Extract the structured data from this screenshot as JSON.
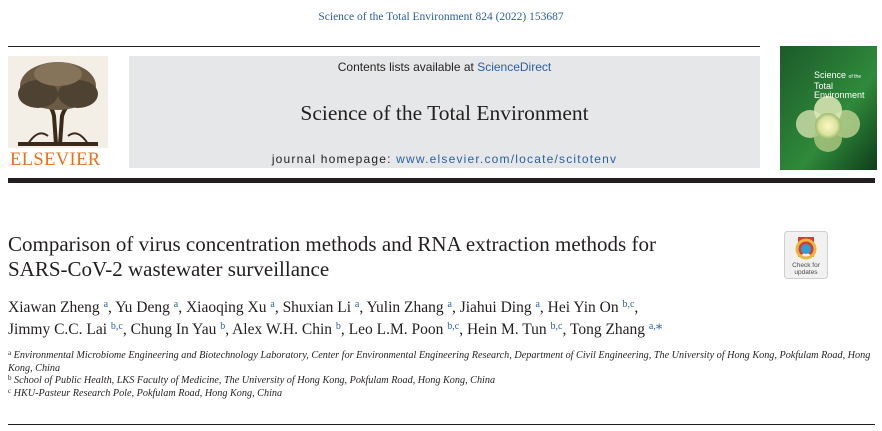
{
  "citation": "Science of the Total Environment 824 (2022) 153687",
  "header": {
    "contents_prefix": "Contents lists available at",
    "contents_link": "ScienceDirect",
    "journal_title": "Science of the Total Environment",
    "homepage_prefix": "journal homepage:",
    "homepage_url": "www.elsevier.com/locate/scitotenv"
  },
  "publisher": {
    "name": "ELSEVIER"
  },
  "cover": {
    "line1": "Science",
    "line2": "of the",
    "line3": "Total Environment"
  },
  "check_updates": {
    "line1": "Check for",
    "line2": "updates"
  },
  "article": {
    "title_line1": "Comparison of virus concentration methods and RNA extraction methods for",
    "title_line2": "SARS-CoV-2 wastewater surveillance"
  },
  "authors": [
    {
      "name": "Xiawan Zheng",
      "aff": "a"
    },
    {
      "name": "Yu Deng",
      "aff": "a"
    },
    {
      "name": "Xiaoqing Xu",
      "aff": "a"
    },
    {
      "name": "Shuxian Li",
      "aff": "a"
    },
    {
      "name": "Yulin Zhang",
      "aff": "a"
    },
    {
      "name": "Jiahui Ding",
      "aff": "a"
    },
    {
      "name": "Hei Yin On",
      "aff": "b,c"
    },
    {
      "name": "Jimmy C.C. Lai",
      "aff": "b,c"
    },
    {
      "name": "Chung In Yau",
      "aff": "b"
    },
    {
      "name": "Alex W.H. Chin",
      "aff": "b"
    },
    {
      "name": "Leo L.M. Poon",
      "aff": "b,c"
    },
    {
      "name": "Hein M. Tun",
      "aff": "b,c"
    },
    {
      "name": "Tong Zhang",
      "aff": "a,",
      "corresponding": "⁎"
    }
  ],
  "affiliations": [
    {
      "mark": "a",
      "text": "Environmental Microbiome Engineering and Biotechnology Laboratory, Center for Environmental Engineering Research, Department of Civil Engineering, The University of Hong Kong, Pokfulam Road, Hong Kong, China"
    },
    {
      "mark": "b",
      "text": "School of Public Health, LKS Faculty of Medicine, The University of Hong Kong, Pokfulam Road, Hong Kong, China"
    },
    {
      "mark": "c",
      "text": "HKU-Pasteur Research Pole, Pokfulam Road, Hong Kong, China"
    }
  ],
  "colors": {
    "link": "#2a5fa0",
    "elsevier_orange": "#e9711c",
    "banner_gray": "#e6e7e8"
  }
}
